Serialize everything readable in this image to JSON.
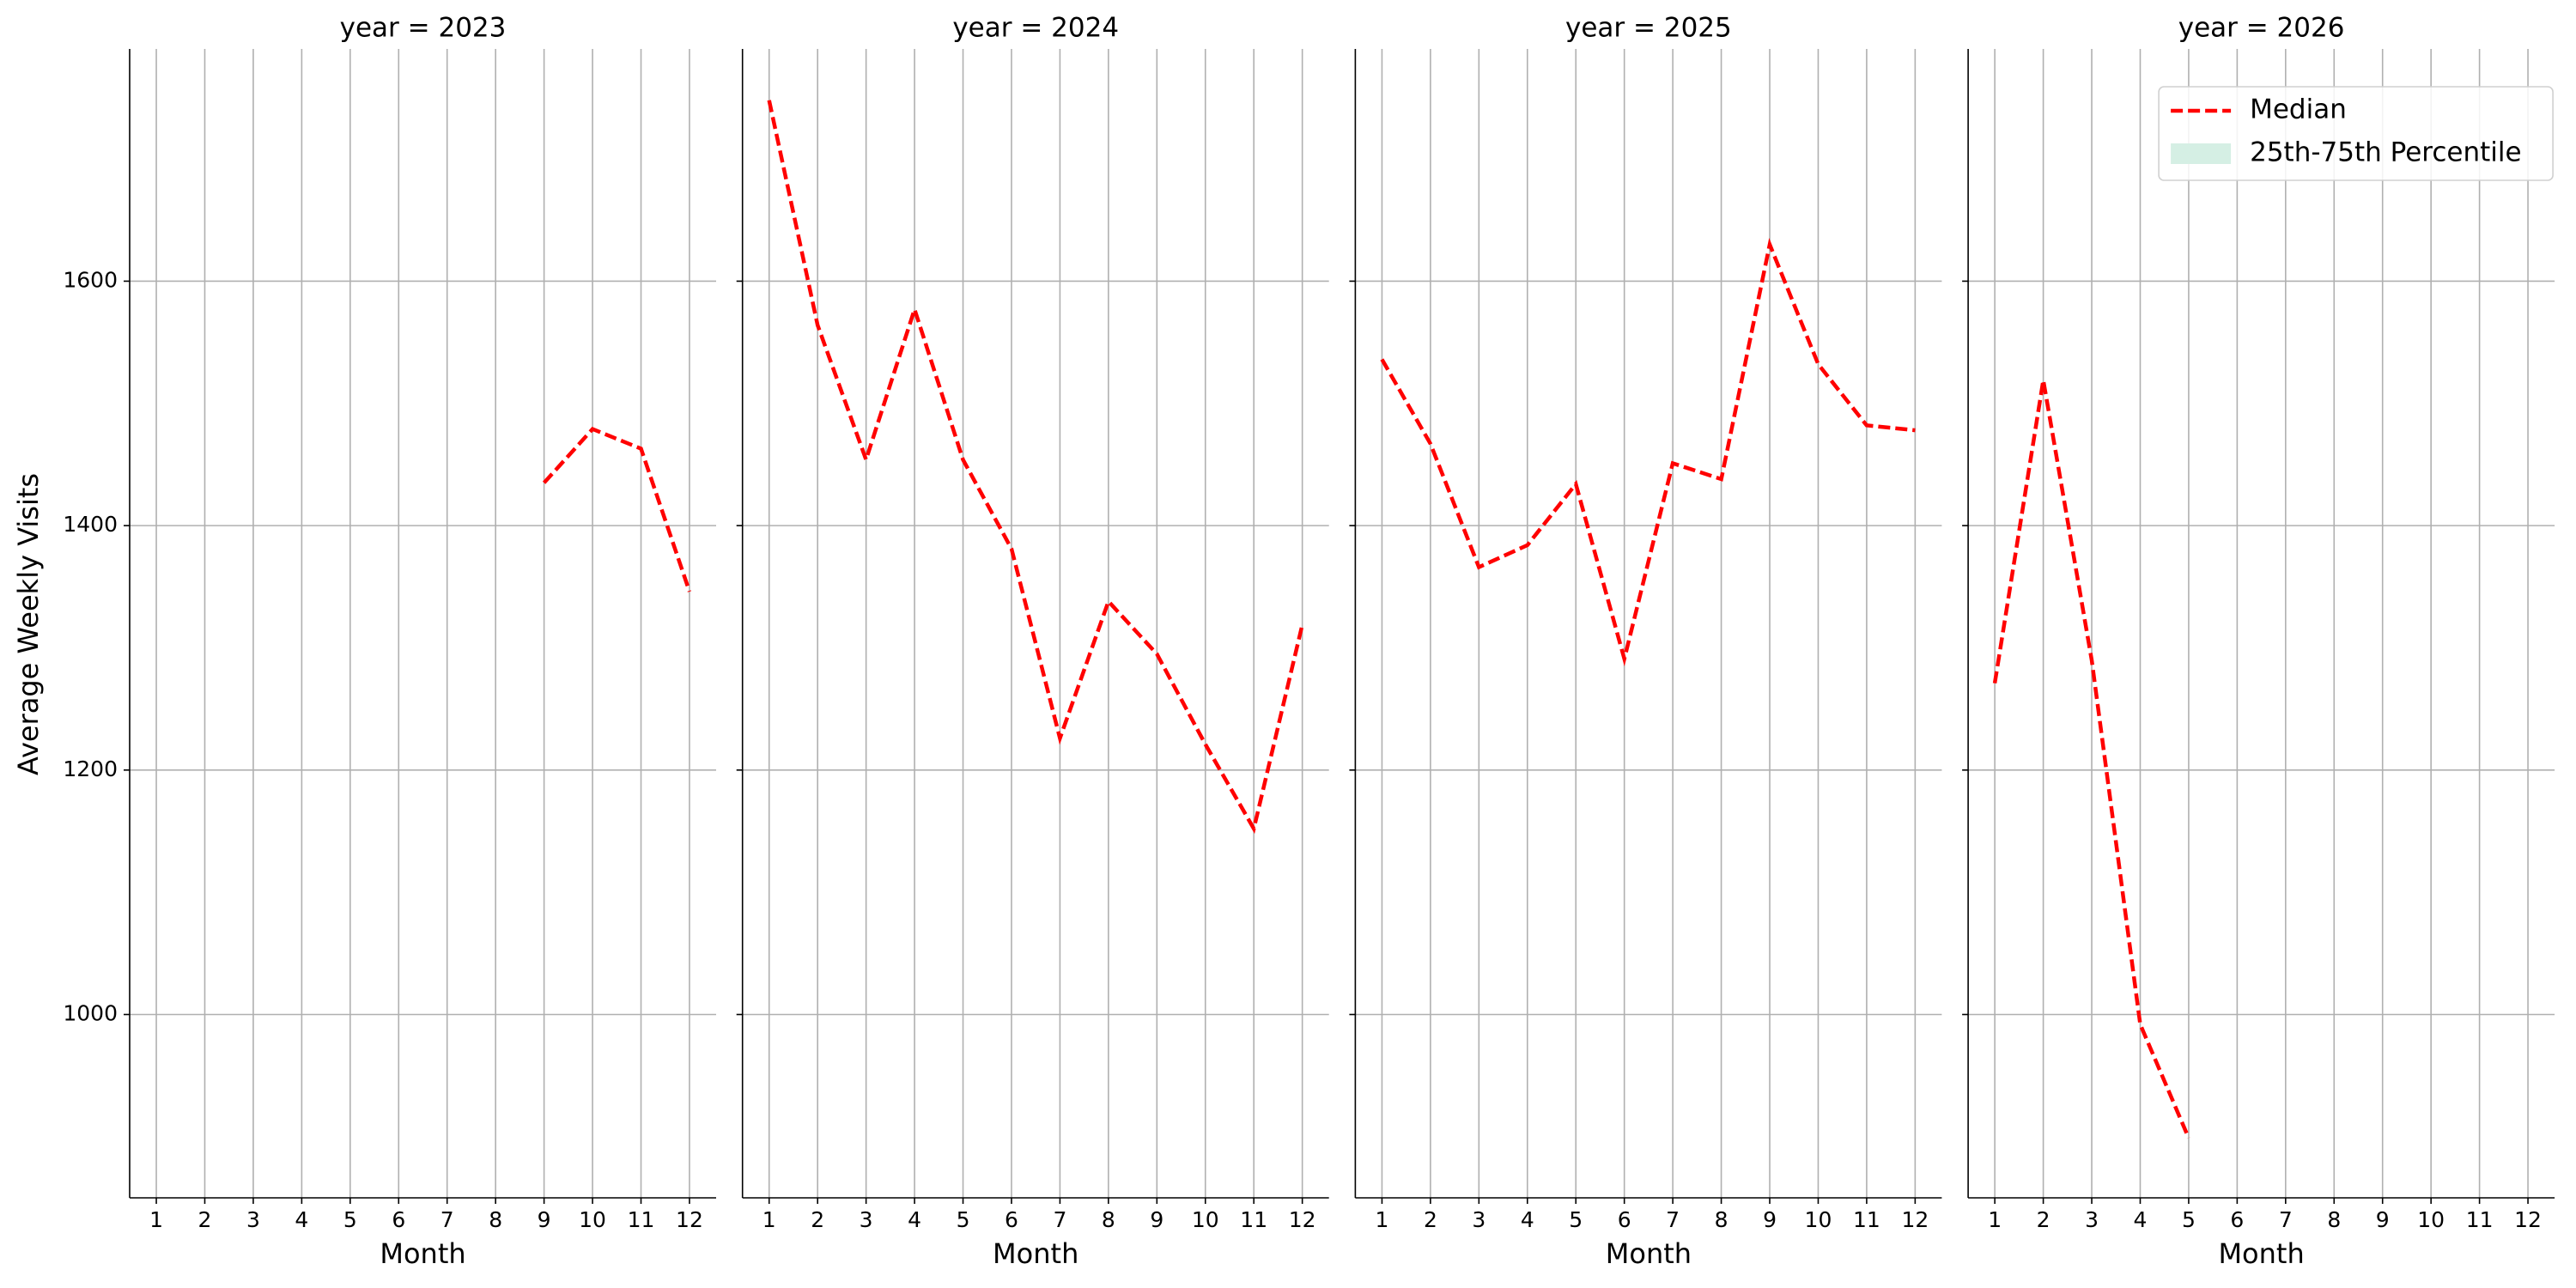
{
  "chart_data": [
    {
      "type": "line",
      "title": "year = 2023",
      "x_label": "Month",
      "y_label": "Average Weekly Visits",
      "x": [
        1,
        2,
        3,
        4,
        5,
        6,
        7,
        8,
        9,
        10,
        11,
        12
      ],
      "xlim": [
        0.45,
        12.55
      ],
      "ylim": [
        850,
        1790
      ],
      "yticks": [
        1000,
        1200,
        1400,
        1600
      ],
      "grid": true,
      "series": [
        {
          "name": "Median",
          "color": "#ff0000",
          "style": "dashed",
          "values": [
            null,
            null,
            null,
            null,
            null,
            null,
            null,
            null,
            1435,
            1479,
            1463,
            1346
          ]
        },
        {
          "name": "25th-75th Percentile",
          "color": "#d5efe4",
          "values": [
            null,
            null,
            null,
            null,
            null,
            null,
            null,
            null,
            null,
            null,
            null,
            null
          ]
        }
      ]
    },
    {
      "type": "line",
      "title": "year = 2024",
      "x_label": "Month",
      "x": [
        1,
        2,
        3,
        4,
        5,
        6,
        7,
        8,
        9,
        10,
        11,
        12
      ],
      "xlim": [
        0.45,
        12.55
      ],
      "ylim": [
        850,
        1790
      ],
      "yticks": [
        1000,
        1200,
        1400,
        1600
      ],
      "grid": true,
      "series": [
        {
          "name": "Median",
          "color": "#ff0000",
          "style": "dashed",
          "values": [
            1748,
            1564,
            1454,
            1577,
            1454,
            1381,
            1226,
            1338,
            1295,
            1221,
            1152,
            1319
          ]
        },
        {
          "name": "25th-75th Percentile",
          "color": "#d5efe4",
          "values": [
            null,
            null,
            null,
            null,
            null,
            null,
            null,
            null,
            null,
            null,
            null,
            null
          ]
        }
      ]
    },
    {
      "type": "line",
      "title": "year = 2025",
      "x_label": "Month",
      "x": [
        1,
        2,
        3,
        4,
        5,
        6,
        7,
        8,
        9,
        10,
        11,
        12
      ],
      "xlim": [
        0.45,
        12.55
      ],
      "ylim": [
        850,
        1790
      ],
      "yticks": [
        1000,
        1200,
        1400,
        1600
      ],
      "grid": true,
      "series": [
        {
          "name": "Median",
          "color": "#ff0000",
          "style": "dashed",
          "values": [
            1536,
            1467,
            1366,
            1384,
            1434,
            1291,
            1451,
            1438,
            1630,
            1532,
            1482,
            1478
          ]
        },
        {
          "name": "25th-75th Percentile",
          "color": "#d5efe4",
          "values": [
            null,
            null,
            null,
            null,
            null,
            null,
            null,
            null,
            null,
            null,
            null,
            null
          ]
        }
      ]
    },
    {
      "type": "line",
      "title": "year = 2026",
      "x_label": "Month",
      "x": [
        1,
        2,
        3,
        4,
        5,
        6,
        7,
        8,
        9,
        10,
        11,
        12
      ],
      "xlim": [
        0.45,
        12.55
      ],
      "ylim": [
        850,
        1790
      ],
      "yticks": [
        1000,
        1200,
        1400,
        1600
      ],
      "grid": true,
      "legend": "upper right",
      "series": [
        {
          "name": "Median",
          "color": "#ff0000",
          "style": "dashed",
          "values": [
            1271,
            1519,
            1290,
            992,
            899,
            null,
            null,
            null,
            null,
            null,
            null,
            null
          ]
        },
        {
          "name": "25th-75th Percentile",
          "color": "#d5efe4",
          "values": [
            null,
            null,
            null,
            null,
            null,
            null,
            null,
            null,
            null,
            null,
            null,
            null
          ]
        }
      ]
    }
  ]
}
